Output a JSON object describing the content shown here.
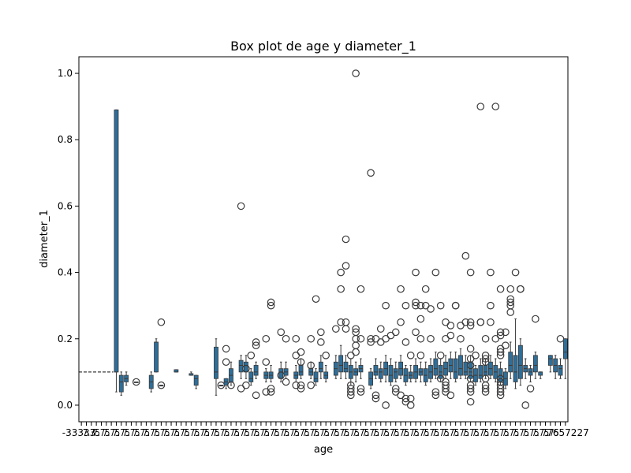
{
  "chart_data": {
    "type": "box",
    "title": "Box plot de age y diameter_1",
    "xlabel": "age",
    "ylabel": "diameter_1",
    "ylim": [
      -0.05,
      1.05
    ],
    "yticks": [
      "0.0",
      "0.2",
      "0.4",
      "0.6",
      "0.8",
      "1.0"
    ],
    "x_tick_labels_visible": {
      "first": "-33333",
      "last": "7657227",
      "note": "~130 overlapping age category labels, unreadable"
    },
    "colors": {
      "box": "#2e6e99",
      "edge": "#3a3a3a",
      "flier_edge": "#3a3a3a"
    },
    "grid": false,
    "series": [
      {
        "boxes": [
          {
            "i": 0,
            "q1": 0.1,
            "med": 0.1,
            "q3": 0.1,
            "lo": 0.1,
            "hi": 0.1,
            "out": []
          },
          {
            "i": 7,
            "q1": 0.1,
            "med": 0.1,
            "q3": 0.89,
            "lo": 0.04,
            "hi": 0.89,
            "out": []
          },
          {
            "i": 8,
            "q1": 0.04,
            "med": 0.07,
            "q3": 0.09,
            "lo": 0.03,
            "hi": 0.1,
            "out": []
          },
          {
            "i": 9,
            "q1": 0.07,
            "med": 0.08,
            "q3": 0.09,
            "lo": 0.06,
            "hi": 0.1,
            "out": []
          },
          {
            "i": 11,
            "q1": 0.07,
            "med": 0.07,
            "q3": 0.07,
            "lo": 0.07,
            "hi": 0.07,
            "out": [
              0.07
            ]
          },
          {
            "i": 14,
            "q1": 0.05,
            "med": 0.07,
            "q3": 0.09,
            "lo": 0.04,
            "hi": 0.1,
            "out": []
          },
          {
            "i": 15,
            "q1": 0.1,
            "med": 0.19,
            "q3": 0.19,
            "lo": 0.1,
            "hi": 0.2,
            "out": []
          },
          {
            "i": 16,
            "q1": 0.06,
            "med": 0.06,
            "q3": 0.06,
            "lo": 0.06,
            "hi": 0.06,
            "out": [
              0.25,
              0.06
            ]
          },
          {
            "i": 19,
            "q1": 0.1,
            "med": 0.1,
            "q3": 0.107,
            "lo": 0.1,
            "hi": 0.107,
            "out": []
          },
          {
            "i": 22,
            "q1": 0.09,
            "med": 0.095,
            "q3": 0.095,
            "lo": 0.09,
            "hi": 0.1,
            "out": []
          },
          {
            "i": 23,
            "q1": 0.06,
            "med": 0.08,
            "q3": 0.09,
            "lo": 0.05,
            "hi": 0.09,
            "out": []
          },
          {
            "i": 27,
            "q1": 0.08,
            "med": 0.1,
            "q3": 0.175,
            "lo": 0.03,
            "hi": 0.2,
            "out": []
          },
          {
            "i": 28,
            "q1": 0.06,
            "med": 0.06,
            "q3": 0.06,
            "lo": 0.06,
            "hi": 0.06,
            "out": [
              0.06
            ]
          },
          {
            "i": 29,
            "q1": 0.06,
            "med": 0.07,
            "q3": 0.08,
            "lo": 0.05,
            "hi": 0.08,
            "out": [
              0.17,
              0.13
            ]
          },
          {
            "i": 30,
            "q1": 0.07,
            "med": 0.09,
            "q3": 0.11,
            "lo": 0.06,
            "hi": 0.13,
            "out": [
              0.06
            ]
          },
          {
            "i": 32,
            "q1": 0.1,
            "med": 0.12,
            "q3": 0.135,
            "lo": 0.08,
            "hi": 0.15,
            "out": [
              0.6,
              0.05
            ]
          },
          {
            "i": 33,
            "q1": 0.1,
            "med": 0.12,
            "q3": 0.13,
            "lo": 0.08,
            "hi": 0.15,
            "out": [
              0.06,
              0.11
            ]
          },
          {
            "i": 34,
            "q1": 0.07,
            "med": 0.08,
            "q3": 0.1,
            "lo": 0.06,
            "hi": 0.11,
            "out": [
              0.15
            ]
          },
          {
            "i": 35,
            "q1": 0.09,
            "med": 0.1,
            "q3": 0.12,
            "lo": 0.08,
            "hi": 0.13,
            "out": [
              0.19,
              0.18,
              0.03
            ]
          },
          {
            "i": 37,
            "q1": 0.08,
            "med": 0.09,
            "q3": 0.1,
            "lo": 0.07,
            "hi": 0.11,
            "out": [
              0.2,
              0.13,
              0.04
            ]
          },
          {
            "i": 38,
            "q1": 0.08,
            "med": 0.09,
            "q3": 0.1,
            "lo": 0.07,
            "hi": 0.12,
            "out": [
              0.31,
              0.3,
              0.05,
              0.04
            ]
          },
          {
            "i": 40,
            "q1": 0.08,
            "med": 0.1,
            "q3": 0.11,
            "lo": 0.07,
            "hi": 0.13,
            "out": [
              0.22,
              0.09
            ]
          },
          {
            "i": 41,
            "q1": 0.09,
            "med": 0.1,
            "q3": 0.11,
            "lo": 0.08,
            "hi": 0.13,
            "out": [
              0.2,
              0.07
            ]
          },
          {
            "i": 43,
            "q1": 0.08,
            "med": 0.09,
            "q3": 0.1,
            "lo": 0.07,
            "hi": 0.12,
            "out": [
              0.2,
              0.15,
              0.06
            ]
          },
          {
            "i": 44,
            "q1": 0.09,
            "med": 0.1,
            "q3": 0.12,
            "lo": 0.08,
            "hi": 0.14,
            "out": [
              0.16,
              0.13,
              0.06,
              0.05
            ]
          },
          {
            "i": 46,
            "q1": 0.09,
            "med": 0.1,
            "q3": 0.11,
            "lo": 0.08,
            "hi": 0.13,
            "out": [
              0.2,
              0.12,
              0.06
            ]
          },
          {
            "i": 47,
            "q1": 0.07,
            "med": 0.08,
            "q3": 0.1,
            "lo": 0.06,
            "hi": 0.11,
            "out": [
              0.32
            ]
          },
          {
            "i": 48,
            "q1": 0.1,
            "med": 0.11,
            "q3": 0.13,
            "lo": 0.08,
            "hi": 0.15,
            "out": [
              0.22,
              0.19
            ]
          },
          {
            "i": 49,
            "q1": 0.08,
            "med": 0.09,
            "q3": 0.1,
            "lo": 0.07,
            "hi": 0.12,
            "out": [
              0.15
            ]
          },
          {
            "i": 51,
            "q1": 0.09,
            "med": 0.11,
            "q3": 0.13,
            "lo": 0.08,
            "hi": 0.15,
            "out": [
              0.23
            ]
          },
          {
            "i": 52,
            "q1": 0.1,
            "med": 0.12,
            "q3": 0.15,
            "lo": 0.08,
            "hi": 0.18,
            "out": [
              0.4,
              0.35,
              0.25
            ]
          },
          {
            "i": 53,
            "q1": 0.1,
            "med": 0.11,
            "q3": 0.13,
            "lo": 0.08,
            "hi": 0.15,
            "out": [
              0.5,
              0.42,
              0.25,
              0.23
            ]
          },
          {
            "i": 54,
            "q1": 0.08,
            "med": 0.1,
            "q3": 0.12,
            "lo": 0.06,
            "hi": 0.14,
            "out": [
              0.15,
              0.06,
              0.05,
              0.04,
              0.03
            ]
          },
          {
            "i": 55,
            "q1": 0.09,
            "med": 0.1,
            "q3": 0.11,
            "lo": 0.07,
            "hi": 0.13,
            "out": [
              1.0,
              0.23,
              0.22,
              0.2,
              0.18,
              0.16
            ]
          },
          {
            "i": 56,
            "q1": 0.1,
            "med": 0.11,
            "q3": 0.12,
            "lo": 0.08,
            "hi": 0.14,
            "out": [
              0.35,
              0.2,
              0.05,
              0.04
            ]
          },
          {
            "i": 58,
            "q1": 0.06,
            "med": 0.08,
            "q3": 0.1,
            "lo": 0.05,
            "hi": 0.11,
            "out": [
              0.7,
              0.2,
              0.19
            ]
          },
          {
            "i": 59,
            "q1": 0.09,
            "med": 0.1,
            "q3": 0.12,
            "lo": 0.08,
            "hi": 0.14,
            "out": [
              0.2,
              0.03,
              0.02
            ]
          },
          {
            "i": 60,
            "q1": 0.08,
            "med": 0.1,
            "q3": 0.11,
            "lo": 0.07,
            "hi": 0.13,
            "out": [
              0.23,
              0.19
            ]
          },
          {
            "i": 61,
            "q1": 0.09,
            "med": 0.11,
            "q3": 0.13,
            "lo": 0.07,
            "hi": 0.15,
            "out": [
              0.3,
              0.2,
              0.0
            ]
          },
          {
            "i": 62,
            "q1": 0.07,
            "med": 0.09,
            "q3": 0.12,
            "lo": 0.06,
            "hi": 0.14,
            "out": [
              0.21
            ]
          },
          {
            "i": 63,
            "q1": 0.08,
            "med": 0.1,
            "q3": 0.11,
            "lo": 0.07,
            "hi": 0.13,
            "out": [
              0.22,
              0.05,
              0.04
            ]
          },
          {
            "i": 64,
            "q1": 0.09,
            "med": 0.11,
            "q3": 0.13,
            "lo": 0.08,
            "hi": 0.15,
            "out": [
              0.35,
              0.25,
              0.03
            ]
          },
          {
            "i": 65,
            "q1": 0.07,
            "med": 0.09,
            "q3": 0.11,
            "lo": 0.06,
            "hi": 0.12,
            "out": [
              0.3,
              0.19,
              0.02,
              0.01
            ]
          },
          {
            "i": 66,
            "q1": 0.08,
            "med": 0.09,
            "q3": 0.1,
            "lo": 0.07,
            "hi": 0.12,
            "out": [
              0.15,
              0.02,
              0.0
            ]
          },
          {
            "i": 67,
            "q1": 0.08,
            "med": 0.1,
            "q3": 0.12,
            "lo": 0.07,
            "hi": 0.14,
            "out": [
              0.4,
              0.31,
              0.3,
              0.22
            ]
          },
          {
            "i": 68,
            "q1": 0.09,
            "med": 0.1,
            "q3": 0.11,
            "lo": 0.07,
            "hi": 0.13,
            "out": [
              0.3,
              0.26,
              0.2,
              0.15
            ]
          },
          {
            "i": 69,
            "q1": 0.07,
            "med": 0.09,
            "q3": 0.11,
            "lo": 0.06,
            "hi": 0.13,
            "out": [
              0.35,
              0.3
            ]
          },
          {
            "i": 70,
            "q1": 0.08,
            "med": 0.1,
            "q3": 0.12,
            "lo": 0.07,
            "hi": 0.14,
            "out": [
              0.29,
              0.2
            ]
          },
          {
            "i": 71,
            "q1": 0.09,
            "med": 0.11,
            "q3": 0.14,
            "lo": 0.08,
            "hi": 0.16,
            "out": [
              0.4,
              0.04,
              0.03
            ]
          },
          {
            "i": 72,
            "q1": 0.08,
            "med": 0.1,
            "q3": 0.12,
            "lo": 0.07,
            "hi": 0.14,
            "out": [
              0.3,
              0.15,
              0.08
            ]
          },
          {
            "i": 73,
            "q1": 0.09,
            "med": 0.11,
            "q3": 0.13,
            "lo": 0.08,
            "hi": 0.15,
            "out": [
              0.25,
              0.2,
              0.07,
              0.06,
              0.05,
              0.04
            ]
          },
          {
            "i": 74,
            "q1": 0.1,
            "med": 0.12,
            "q3": 0.14,
            "lo": 0.08,
            "hi": 0.16,
            "out": [
              0.24,
              0.21,
              0.03
            ]
          },
          {
            "i": 75,
            "q1": 0.08,
            "med": 0.1,
            "q3": 0.14,
            "lo": 0.07,
            "hi": 0.16,
            "out": [
              0.3,
              0.3
            ]
          },
          {
            "i": 76,
            "q1": 0.09,
            "med": 0.11,
            "q3": 0.15,
            "lo": 0.08,
            "hi": 0.17,
            "out": [
              0.24,
              0.2
            ]
          },
          {
            "i": 77,
            "q1": 0.09,
            "med": 0.1,
            "q3": 0.13,
            "lo": 0.08,
            "hi": 0.15,
            "out": [
              0.45,
              0.25
            ]
          },
          {
            "i": 78,
            "q1": 0.08,
            "med": 0.1,
            "q3": 0.13,
            "lo": 0.07,
            "hi": 0.15,
            "out": [
              0.4,
              0.25,
              0.24,
              0.17,
              0.14,
              0.12,
              0.08,
              0.06,
              0.05,
              0.04,
              0.01
            ]
          },
          {
            "i": 79,
            "q1": 0.07,
            "med": 0.09,
            "q3": 0.11,
            "lo": 0.06,
            "hi": 0.12,
            "out": [
              0.15
            ]
          },
          {
            "i": 80,
            "q1": 0.08,
            "med": 0.09,
            "q3": 0.12,
            "lo": 0.07,
            "hi": 0.14,
            "out": [
              0.9,
              0.25,
              0.25
            ]
          },
          {
            "i": 81,
            "q1": 0.09,
            "med": 0.1,
            "q3": 0.12,
            "lo": 0.08,
            "hi": 0.14,
            "out": [
              0.2,
              0.15,
              0.14,
              0.13,
              0.08,
              0.06,
              0.05,
              0.04
            ]
          },
          {
            "i": 82,
            "q1": 0.09,
            "med": 0.11,
            "q3": 0.13,
            "lo": 0.08,
            "hi": 0.15,
            "out": [
              0.4,
              0.3,
              0.25
            ]
          },
          {
            "i": 83,
            "q1": 0.08,
            "med": 0.1,
            "q3": 0.12,
            "lo": 0.07,
            "hi": 0.14,
            "out": [
              0.9,
              0.2
            ]
          },
          {
            "i": 84,
            "q1": 0.07,
            "med": 0.09,
            "q3": 0.11,
            "lo": 0.06,
            "hi": 0.13,
            "out": [
              0.35,
              0.22,
              0.21,
              0.17,
              0.16,
              0.15,
              0.08,
              0.07,
              0.06,
              0.05,
              0.04,
              0.03
            ]
          },
          {
            "i": 85,
            "q1": 0.06,
            "med": 0.08,
            "q3": 0.1,
            "lo": 0.05,
            "hi": 0.11,
            "out": [
              0.22,
              0.18
            ]
          },
          {
            "i": 86,
            "q1": 0.1,
            "med": 0.12,
            "q3": 0.16,
            "lo": 0.08,
            "hi": 0.19,
            "out": [
              0.35,
              0.32,
              0.31,
              0.3,
              0.28
            ]
          },
          {
            "i": 87,
            "q1": 0.07,
            "med": 0.1,
            "q3": 0.15,
            "lo": 0.05,
            "hi": 0.26,
            "out": [
              0.4
            ]
          },
          {
            "i": 88,
            "q1": 0.08,
            "med": 0.12,
            "q3": 0.18,
            "lo": 0.06,
            "hi": 0.2,
            "out": [
              0.35,
              0.35
            ]
          },
          {
            "i": 89,
            "q1": 0.1,
            "med": 0.11,
            "q3": 0.12,
            "lo": 0.08,
            "hi": 0.14,
            "out": [
              0.0
            ]
          },
          {
            "i": 90,
            "q1": 0.09,
            "med": 0.1,
            "q3": 0.11,
            "lo": 0.07,
            "hi": 0.12,
            "out": [
              0.05
            ]
          },
          {
            "i": 91,
            "q1": 0.1,
            "med": 0.12,
            "q3": 0.15,
            "lo": 0.08,
            "hi": 0.16,
            "out": [
              0.26
            ]
          },
          {
            "i": 92,
            "q1": 0.09,
            "med": 0.1,
            "q3": 0.1,
            "lo": 0.08,
            "hi": 0.1,
            "out": []
          },
          {
            "i": 94,
            "q1": 0.12,
            "med": 0.14,
            "q3": 0.15,
            "lo": 0.1,
            "hi": 0.15,
            "out": []
          },
          {
            "i": 95,
            "q1": 0.1,
            "med": 0.12,
            "q3": 0.14,
            "lo": 0.08,
            "hi": 0.15,
            "out": []
          },
          {
            "i": 96,
            "q1": 0.09,
            "med": 0.11,
            "q3": 0.12,
            "lo": 0.08,
            "hi": 0.14,
            "out": [
              0.2
            ]
          },
          {
            "i": 97,
            "q1": 0.14,
            "med": 0.16,
            "q3": 0.2,
            "lo": 0.08,
            "hi": 0.2,
            "out": []
          }
        ]
      }
    ]
  }
}
